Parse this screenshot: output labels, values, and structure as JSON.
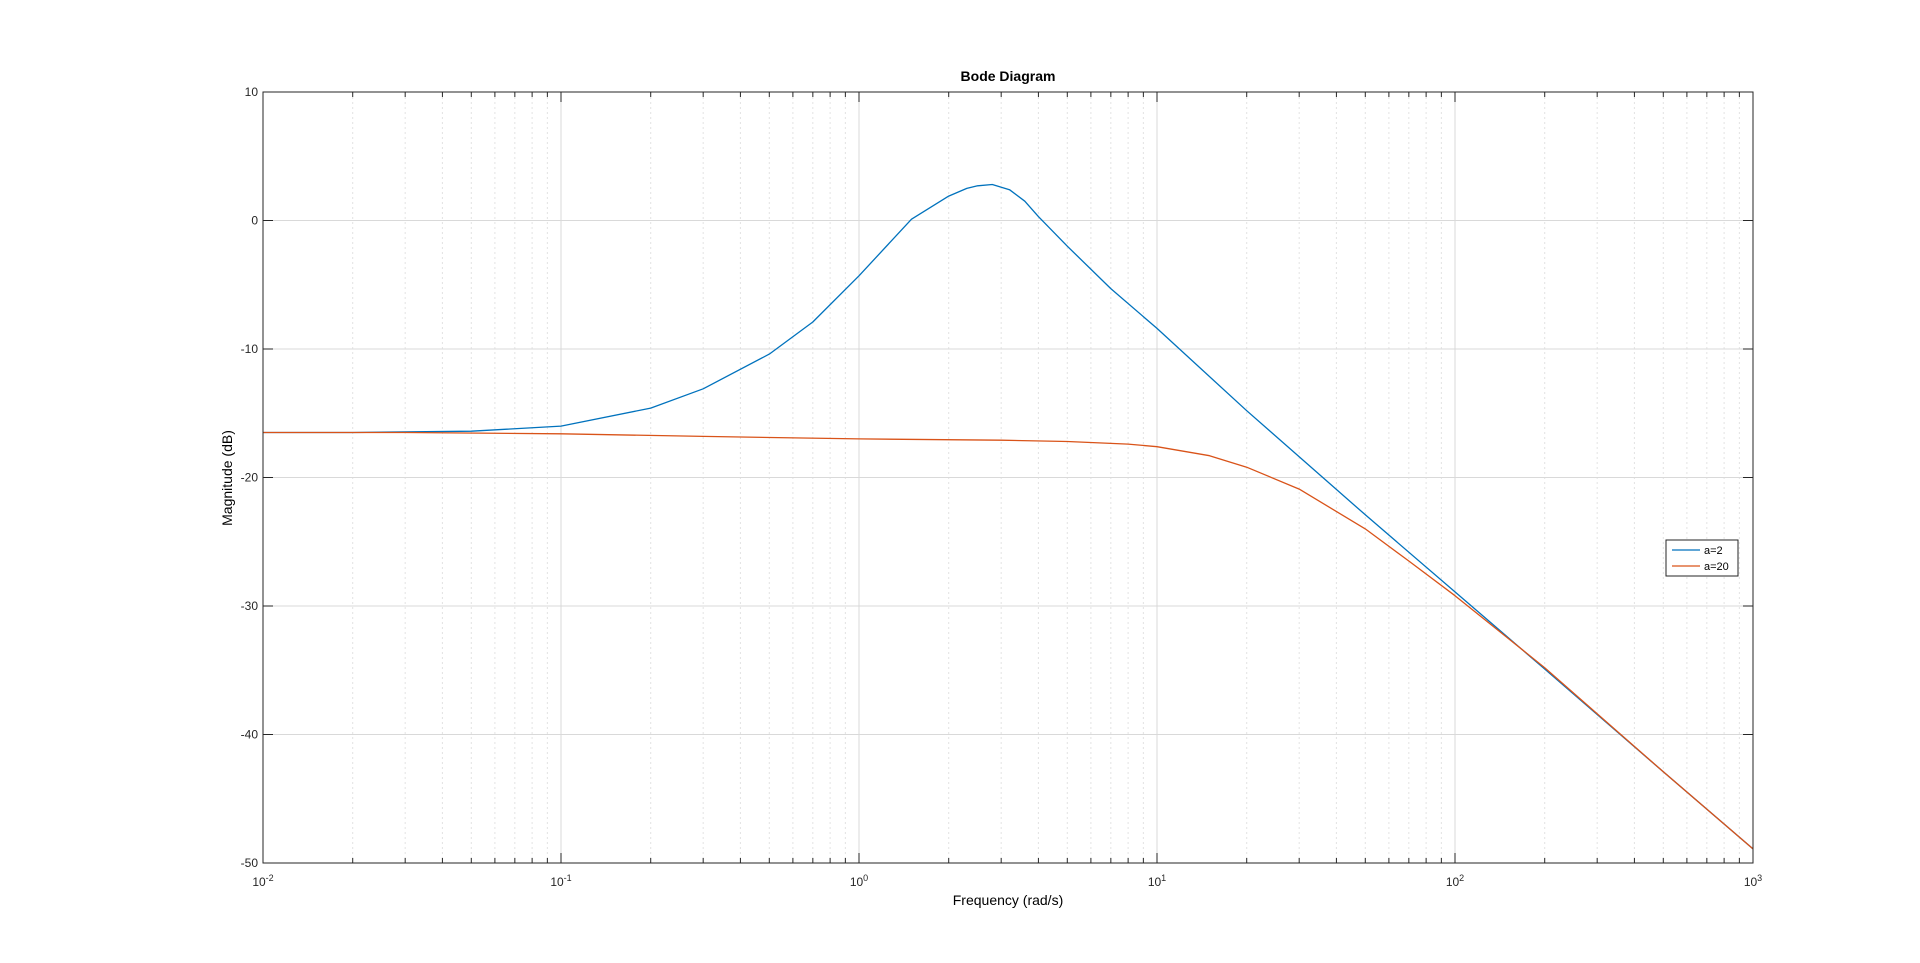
{
  "chart_data": {
    "type": "line",
    "title": "Bode Diagram",
    "xlabel": "Frequency  (rad/s)",
    "ylabel": "Magnitude (dB)",
    "xscale": "log",
    "xlim": [
      0.01,
      1000
    ],
    "ylim": [
      -50,
      10
    ],
    "xticks": [
      {
        "value": 0.01,
        "base": "10",
        "exp": "-2"
      },
      {
        "value": 0.1,
        "base": "10",
        "exp": "-1"
      },
      {
        "value": 1,
        "base": "10",
        "exp": "0"
      },
      {
        "value": 10,
        "base": "10",
        "exp": "1"
      },
      {
        "value": 100,
        "base": "10",
        "exp": "2"
      },
      {
        "value": 1000,
        "base": "10",
        "exp": "3"
      }
    ],
    "yticks": [
      {
        "value": 10,
        "label": "10"
      },
      {
        "value": 0,
        "label": "0"
      },
      {
        "value": -10,
        "label": "-10"
      },
      {
        "value": -20,
        "label": "-20"
      },
      {
        "value": -30,
        "label": "-30"
      },
      {
        "value": -40,
        "label": "-40"
      },
      {
        "value": -50,
        "label": "-50"
      }
    ],
    "grid": true,
    "legend_position": "right",
    "series": [
      {
        "name": "a=2",
        "color": "#0072BD",
        "x": [
          0.01,
          0.02,
          0.05,
          0.1,
          0.2,
          0.3,
          0.5,
          0.7,
          1.0,
          1.5,
          2.0,
          2.3,
          2.5,
          2.8,
          3.2,
          3.6,
          4.0,
          5.0,
          7.0,
          10,
          20,
          50,
          100,
          200,
          500,
          1000
        ],
        "y": [
          -16.5,
          -16.5,
          -16.4,
          -16.0,
          -14.6,
          -13.1,
          -10.4,
          -7.9,
          -4.3,
          0.1,
          1.9,
          2.5,
          2.7,
          2.8,
          2.4,
          1.5,
          0.3,
          -2.0,
          -5.3,
          -8.4,
          -14.8,
          -22.9,
          -28.9,
          -34.9,
          -42.9,
          -48.9
        ]
      },
      {
        "name": "a=20",
        "color": "#D95319",
        "x": [
          0.01,
          0.03,
          0.1,
          0.3,
          1,
          3,
          5,
          8,
          10,
          15,
          20,
          30,
          50,
          70,
          100,
          200,
          500,
          1000
        ],
        "y": [
          -16.5,
          -16.5,
          -16.6,
          -16.8,
          -17.0,
          -17.1,
          -17.2,
          -17.4,
          -17.6,
          -18.3,
          -19.2,
          -20.9,
          -24.0,
          -26.5,
          -29.2,
          -34.8,
          -42.9,
          -48.9
        ]
      }
    ]
  }
}
